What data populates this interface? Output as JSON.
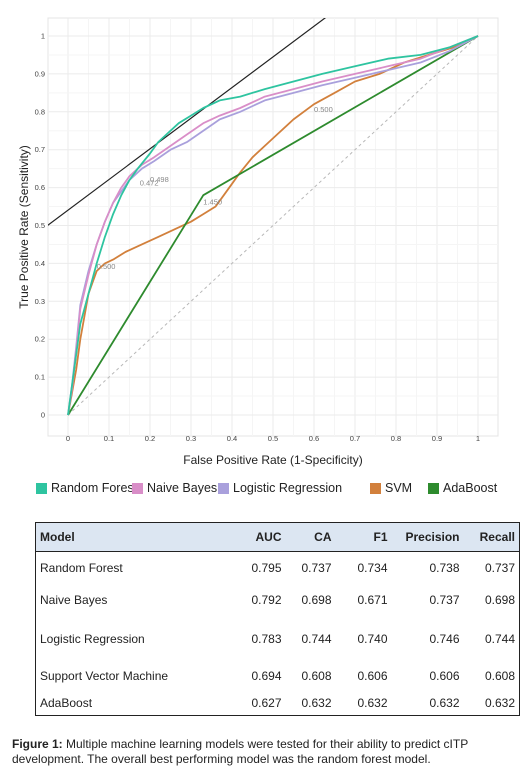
{
  "chart_data": {
    "type": "line",
    "xlabel": "False Positive Rate (1-Specificity)",
    "ylabel": "True Positive Rate (Sensitivity)",
    "xlim": [
      0,
      1
    ],
    "ylim": [
      0,
      1
    ],
    "x_ticks": [
      "0",
      "0.1",
      "0.2",
      "0.3",
      "0.4",
      "0.5",
      "0.6",
      "0.7",
      "0.8",
      "0.9",
      "1"
    ],
    "y_ticks": [
      "0",
      "0.1",
      "0.2",
      "0.3",
      "0.4",
      "0.5",
      "0.6",
      "0.7",
      "0.8",
      "0.9",
      "1"
    ],
    "grid": true,
    "legend_position": "bottom",
    "series": [
      {
        "name": "Random Forest",
        "color": "#2ec4a0",
        "x": [
          0,
          0.01,
          0.02,
          0.03,
          0.05,
          0.07,
          0.09,
          0.11,
          0.13,
          0.15,
          0.17,
          0.2,
          0.22,
          0.24,
          0.27,
          0.3,
          0.33,
          0.37,
          0.42,
          0.48,
          0.55,
          0.62,
          0.7,
          0.78,
          0.86,
          0.93,
          1
        ],
        "y": [
          0,
          0.08,
          0.16,
          0.24,
          0.32,
          0.4,
          0.47,
          0.53,
          0.58,
          0.62,
          0.65,
          0.69,
          0.72,
          0.74,
          0.77,
          0.79,
          0.81,
          0.83,
          0.84,
          0.86,
          0.88,
          0.9,
          0.92,
          0.94,
          0.95,
          0.97,
          1
        ]
      },
      {
        "name": "Naive Bayes",
        "color": "#d98ec8",
        "x": [
          0,
          0.01,
          0.02,
          0.03,
          0.05,
          0.07,
          0.09,
          0.11,
          0.13,
          0.15,
          0.18,
          0.21,
          0.25,
          0.29,
          0.33,
          0.37,
          0.42,
          0.48,
          0.55,
          0.62,
          0.7,
          0.78,
          0.86,
          0.93,
          1
        ],
        "y": [
          0,
          0.07,
          0.17,
          0.28,
          0.37,
          0.45,
          0.51,
          0.56,
          0.6,
          0.63,
          0.66,
          0.68,
          0.71,
          0.74,
          0.77,
          0.79,
          0.81,
          0.84,
          0.86,
          0.88,
          0.9,
          0.92,
          0.94,
          0.97,
          1
        ]
      },
      {
        "name": "Logistic Regression",
        "color": "#a9a0dc",
        "x": [
          0,
          0.01,
          0.02,
          0.03,
          0.05,
          0.07,
          0.09,
          0.11,
          0.13,
          0.15,
          0.18,
          0.21,
          0.25,
          0.29,
          0.33,
          0.37,
          0.42,
          0.48,
          0.55,
          0.62,
          0.7,
          0.78,
          0.86,
          0.93,
          1
        ],
        "y": [
          0,
          0.08,
          0.18,
          0.29,
          0.38,
          0.45,
          0.51,
          0.56,
          0.59,
          0.62,
          0.65,
          0.67,
          0.7,
          0.72,
          0.75,
          0.78,
          0.8,
          0.83,
          0.85,
          0.87,
          0.89,
          0.91,
          0.93,
          0.96,
          1
        ]
      },
      {
        "name": "SVM",
        "color": "#d2803c",
        "x": [
          0,
          0.01,
          0.02,
          0.03,
          0.04,
          0.05,
          0.07,
          0.09,
          0.11,
          0.14,
          0.18,
          0.22,
          0.26,
          0.3,
          0.33,
          0.36,
          0.38,
          0.4,
          0.42,
          0.45,
          0.48,
          0.51,
          0.55,
          0.6,
          0.65,
          0.7,
          0.76,
          0.82,
          0.88,
          0.94,
          1
        ],
        "y": [
          0,
          0.06,
          0.12,
          0.2,
          0.26,
          0.32,
          0.38,
          0.4,
          0.41,
          0.43,
          0.45,
          0.47,
          0.49,
          0.51,
          0.53,
          0.55,
          0.58,
          0.61,
          0.64,
          0.68,
          0.71,
          0.74,
          0.78,
          0.82,
          0.85,
          0.88,
          0.9,
          0.93,
          0.95,
          0.97,
          1
        ]
      },
      {
        "name": "AdaBoost",
        "color": "#2e8b2e",
        "x": [
          0,
          0.33,
          1
        ],
        "y": [
          0,
          0.58,
          1
        ]
      }
    ],
    "annotations": [
      {
        "text": "0.500",
        "x": 0.6,
        "y": 0.8
      },
      {
        "text": "0.498",
        "x": 0.2,
        "y": 0.615
      },
      {
        "text": "0.472",
        "x": 0.175,
        "y": 0.605
      },
      {
        "text": "1.450",
        "x": 0.33,
        "y": 0.555
      },
      {
        "text": "0.500",
        "x": 0.07,
        "y": 0.385
      }
    ],
    "reference_line": {
      "x": [
        0,
        1
      ],
      "y": [
        0,
        1
      ]
    },
    "tangent_line": {
      "x": [
        -0.05,
        0.63
      ],
      "y": [
        0.5,
        1.05
      ]
    }
  },
  "table": {
    "headers": [
      "Model",
      "AUC",
      "CA",
      "F1",
      "Precision",
      "Recall"
    ],
    "rows": [
      [
        "Random Forest",
        "0.795",
        "0.737",
        "0.734",
        "0.738",
        "0.737"
      ],
      [
        "Naive Bayes",
        "0.792",
        "0.698",
        "0.671",
        "0.737",
        "0.698"
      ],
      [
        "Logistic Regression",
        "0.783",
        "0.744",
        "0.740",
        "0.746",
        "0.744"
      ],
      [
        "Support Vector Machine",
        "0.694",
        "0.608",
        "0.606",
        "0.606",
        "0.608"
      ],
      [
        "AdaBoost",
        "0.627",
        "0.632",
        "0.632",
        "0.632",
        "0.632"
      ]
    ]
  },
  "caption": {
    "label": "Figure 1:",
    "text": "Multiple machine learning models were tested for their ability to predict cITP development. The overall best performing model was the random forest model."
  }
}
